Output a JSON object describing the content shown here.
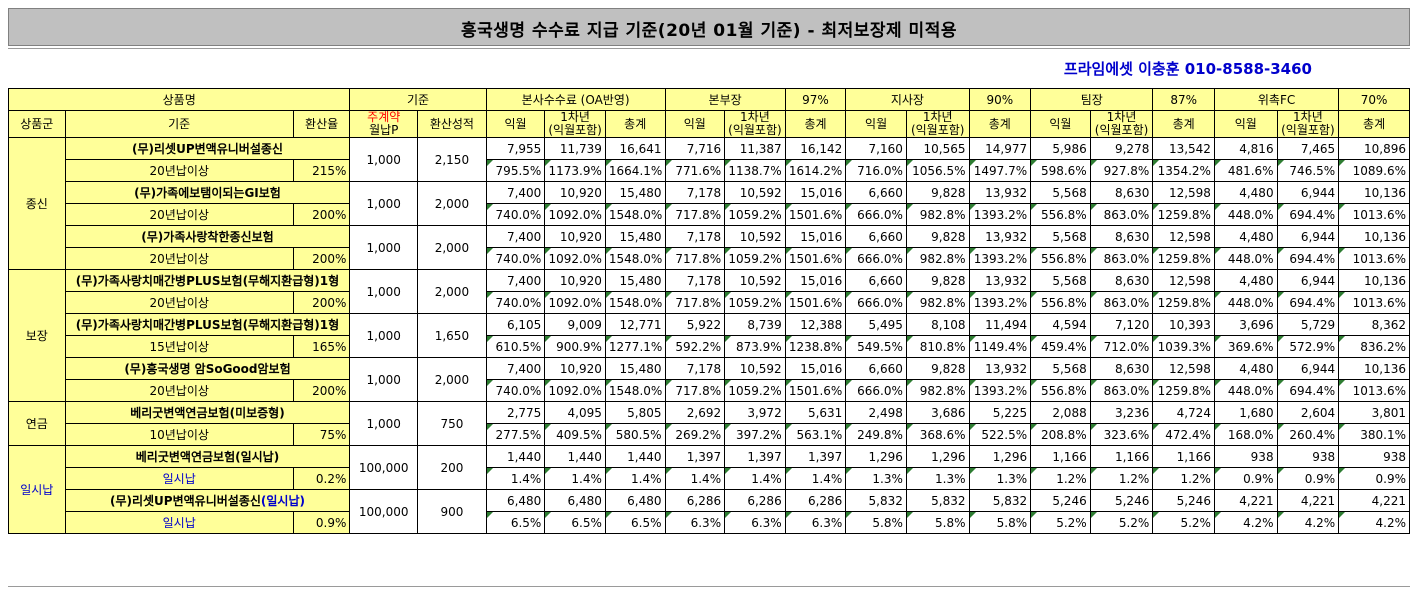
{
  "title": "흥국생명 수수료 지급 기준(20년 01월 기준) - 최저보장제 미적용",
  "contact": "프라임에셋 이충훈 010-8588-3460",
  "header": {
    "product_name": "상품명",
    "standard": "기준",
    "hq": "본사수수료 (OA반영)",
    "groups": [
      {
        "label": "본부장",
        "rate": "97%"
      },
      {
        "label": "지사장",
        "rate": "90%"
      },
      {
        "label": "팀장",
        "rate": "87%"
      },
      {
        "label": "위촉FC",
        "rate": "70%"
      }
    ],
    "product_group": "상품군",
    "basis": "기준",
    "conv_rate": "환산율",
    "monthly_p_top": "주계약",
    "monthly_p_bottom": "월납P",
    "conv_perf": "환산성적",
    "next_month": "익월",
    "first_year_top": "1차년",
    "first_year_bottom": "(익월포함)",
    "total": "총계"
  },
  "categories": [
    {
      "name": "종신",
      "rows": 3
    },
    {
      "name": "보장",
      "rows": 3
    },
    {
      "name": "연금",
      "rows": 1
    },
    {
      "name": "일시납",
      "rows": 2
    }
  ],
  "products": [
    {
      "name": "(무)리셋UP변액유니버설종신",
      "name_extra": "",
      "basis": "20년납이상",
      "rate": "215%",
      "monthly": "1,000",
      "perf": "2,150",
      "amounts": [
        "7,955",
        "11,739",
        "16,641",
        "7,716",
        "11,387",
        "16,142",
        "7,160",
        "10,565",
        "14,977",
        "5,986",
        "9,278",
        "13,542",
        "4,816",
        "7,465",
        "10,896"
      ],
      "pcts": [
        "795.5%",
        "1173.9%",
        "1664.1%",
        "771.6%",
        "1138.7%",
        "1614.2%",
        "716.0%",
        "1056.5%",
        "1497.7%",
        "598.6%",
        "927.8%",
        "1354.2%",
        "481.6%",
        "746.5%",
        "1089.6%"
      ]
    },
    {
      "name": "(무)가족에보탬이되는GI보험",
      "name_extra": "",
      "basis": "20년납이상",
      "rate": "200%",
      "monthly": "1,000",
      "perf": "2,000",
      "amounts": [
        "7,400",
        "10,920",
        "15,480",
        "7,178",
        "10,592",
        "15,016",
        "6,660",
        "9,828",
        "13,932",
        "5,568",
        "8,630",
        "12,598",
        "4,480",
        "6,944",
        "10,136"
      ],
      "pcts": [
        "740.0%",
        "1092.0%",
        "1548.0%",
        "717.8%",
        "1059.2%",
        "1501.6%",
        "666.0%",
        "982.8%",
        "1393.2%",
        "556.8%",
        "863.0%",
        "1259.8%",
        "448.0%",
        "694.4%",
        "1013.6%"
      ]
    },
    {
      "name": "(무)가족사랑착한종신보험",
      "name_extra": "",
      "basis": "20년납이상",
      "rate": "200%",
      "monthly": "1,000",
      "perf": "2,000",
      "amounts": [
        "7,400",
        "10,920",
        "15,480",
        "7,178",
        "10,592",
        "15,016",
        "6,660",
        "9,828",
        "13,932",
        "5,568",
        "8,630",
        "12,598",
        "4,480",
        "6,944",
        "10,136"
      ],
      "pcts": [
        "740.0%",
        "1092.0%",
        "1548.0%",
        "717.8%",
        "1059.2%",
        "1501.6%",
        "666.0%",
        "982.8%",
        "1393.2%",
        "556.8%",
        "863.0%",
        "1259.8%",
        "448.0%",
        "694.4%",
        "1013.6%"
      ]
    },
    {
      "name": "(무)가족사랑치매간병PLUS보험(무해지환급형)1형",
      "name_extra": "",
      "basis": "20년납이상",
      "rate": "200%",
      "monthly": "1,000",
      "perf": "2,000",
      "amounts": [
        "7,400",
        "10,920",
        "15,480",
        "7,178",
        "10,592",
        "15,016",
        "6,660",
        "9,828",
        "13,932",
        "5,568",
        "8,630",
        "12,598",
        "4,480",
        "6,944",
        "10,136"
      ],
      "pcts": [
        "740.0%",
        "1092.0%",
        "1548.0%",
        "717.8%",
        "1059.2%",
        "1501.6%",
        "666.0%",
        "982.8%",
        "1393.2%",
        "556.8%",
        "863.0%",
        "1259.8%",
        "448.0%",
        "694.4%",
        "1013.6%"
      ]
    },
    {
      "name": "(무)가족사랑치매간병PLUS보험(무해지환급형)1형",
      "name_extra": "",
      "basis": "15년납이상",
      "rate": "165%",
      "monthly": "1,000",
      "perf": "1,650",
      "amounts": [
        "6,105",
        "9,009",
        "12,771",
        "5,922",
        "8,739",
        "12,388",
        "5,495",
        "8,108",
        "11,494",
        "4,594",
        "7,120",
        "10,393",
        "3,696",
        "5,729",
        "8,362"
      ],
      "pcts": [
        "610.5%",
        "900.9%",
        "1277.1%",
        "592.2%",
        "873.9%",
        "1238.8%",
        "549.5%",
        "810.8%",
        "1149.4%",
        "459.4%",
        "712.0%",
        "1039.3%",
        "369.6%",
        "572.9%",
        "836.2%"
      ]
    },
    {
      "name": "(무)흥국생명 암SoGood암보험",
      "name_extra": "",
      "basis": "20년납이상",
      "rate": "200%",
      "monthly": "1,000",
      "perf": "2,000",
      "amounts": [
        "7,400",
        "10,920",
        "15,480",
        "7,178",
        "10,592",
        "15,016",
        "6,660",
        "9,828",
        "13,932",
        "5,568",
        "8,630",
        "12,598",
        "4,480",
        "6,944",
        "10,136"
      ],
      "pcts": [
        "740.0%",
        "1092.0%",
        "1548.0%",
        "717.8%",
        "1059.2%",
        "1501.6%",
        "666.0%",
        "982.8%",
        "1393.2%",
        "556.8%",
        "863.0%",
        "1259.8%",
        "448.0%",
        "694.4%",
        "1013.6%"
      ]
    },
    {
      "name": "베리굿변액연금보험(미보증형)",
      "name_extra": "",
      "basis": "10년납이상",
      "rate": "75%",
      "monthly": "1,000",
      "perf": "750",
      "amounts": [
        "2,775",
        "4,095",
        "5,805",
        "2,692",
        "3,972",
        "5,631",
        "2,498",
        "3,686",
        "5,225",
        "2,088",
        "3,236",
        "4,724",
        "1,680",
        "2,604",
        "3,801"
      ],
      "pcts": [
        "277.5%",
        "409.5%",
        "580.5%",
        "269.2%",
        "397.2%",
        "563.1%",
        "249.8%",
        "368.6%",
        "522.5%",
        "208.8%",
        "323.6%",
        "472.4%",
        "168.0%",
        "260.4%",
        "380.1%"
      ]
    },
    {
      "name": "베리굿변액연금보험(일시납)",
      "name_extra": "",
      "basis": "일시납",
      "rate": "0.2%",
      "monthly": "100,000",
      "perf": "200",
      "amounts": [
        "1,440",
        "1,440",
        "1,440",
        "1,397",
        "1,397",
        "1,397",
        "1,296",
        "1,296",
        "1,296",
        "1,166",
        "1,166",
        "1,166",
        "938",
        "938",
        "938"
      ],
      "pcts": [
        "1.4%",
        "1.4%",
        "1.4%",
        "1.4%",
        "1.4%",
        "1.4%",
        "1.3%",
        "1.3%",
        "1.3%",
        "1.2%",
        "1.2%",
        "1.2%",
        "0.9%",
        "0.9%",
        "0.9%"
      ]
    },
    {
      "name": "(무)리셋UP변액유니버설종신",
      "name_extra": "(일시납)",
      "basis": "일시납",
      "rate": "0.9%",
      "monthly": "100,000",
      "perf": "900",
      "amounts": [
        "6,480",
        "6,480",
        "6,480",
        "6,286",
        "6,286",
        "6,286",
        "5,832",
        "5,832",
        "5,832",
        "5,246",
        "5,246",
        "5,246",
        "4,221",
        "4,221",
        "4,221"
      ],
      "pcts": [
        "6.5%",
        "6.5%",
        "6.5%",
        "6.3%",
        "6.3%",
        "6.3%",
        "5.8%",
        "5.8%",
        "5.8%",
        "5.2%",
        "5.2%",
        "5.2%",
        "4.2%",
        "4.2%",
        "4.2%"
      ]
    }
  ]
}
